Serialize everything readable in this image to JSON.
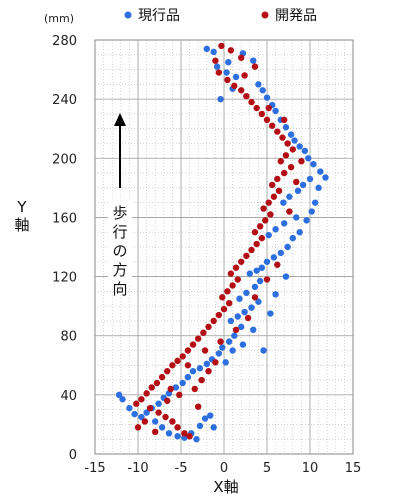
{
  "chart_data": {
    "type": "scatter",
    "xlabel": "X軸",
    "ylabel": "Y軸",
    "yunit": "(mm)",
    "xlim": [
      -15,
      15
    ],
    "ylim": [
      0,
      280
    ],
    "xticks": [
      -15,
      -10,
      -5,
      0,
      5,
      10,
      15
    ],
    "yticks": [
      0,
      40,
      80,
      120,
      160,
      200,
      240,
      280
    ],
    "grid": true,
    "legend_position": "top",
    "annotation": "歩行の方向",
    "colors": {
      "current": "#2e6fe0",
      "developed": "#b40f14"
    },
    "series": [
      {
        "name": "現行品",
        "color": "#2e6fe0",
        "points": [
          [
            -2.0,
            274
          ],
          [
            -1.2,
            272
          ],
          [
            -0.8,
            262
          ],
          [
            0.3,
            258
          ],
          [
            1.4,
            255
          ],
          [
            2.2,
            271
          ],
          [
            3.4,
            266
          ],
          [
            4.0,
            250
          ],
          [
            4.5,
            246
          ],
          [
            5.0,
            241
          ],
          [
            5.6,
            236
          ],
          [
            6.0,
            232
          ],
          [
            6.6,
            226
          ],
          [
            7.2,
            221
          ],
          [
            7.8,
            216
          ],
          [
            8.2,
            212
          ],
          [
            8.8,
            208
          ],
          [
            9.4,
            205
          ],
          [
            9.8,
            200
          ],
          [
            10.4,
            196
          ],
          [
            11.2,
            191
          ],
          [
            11.8,
            187
          ],
          [
            10.0,
            186
          ],
          [
            9.2,
            182
          ],
          [
            8.6,
            178
          ],
          [
            7.6,
            174
          ],
          [
            6.9,
            170
          ],
          [
            10.6,
            170
          ],
          [
            10.2,
            164
          ],
          [
            8.4,
            160
          ],
          [
            7.0,
            156
          ],
          [
            6.0,
            152
          ],
          [
            5.2,
            148
          ],
          [
            8.0,
            146
          ],
          [
            7.4,
            140
          ],
          [
            6.6,
            136
          ],
          [
            5.8,
            133
          ],
          [
            5.0,
            130
          ],
          [
            4.4,
            126
          ],
          [
            3.8,
            124
          ],
          [
            3.0,
            122
          ],
          [
            4.2,
            117
          ],
          [
            3.6,
            113
          ],
          [
            2.6,
            109
          ],
          [
            1.8,
            105
          ],
          [
            4.0,
            103
          ],
          [
            3.2,
            99
          ],
          [
            2.4,
            96
          ],
          [
            1.6,
            93
          ],
          [
            0.8,
            90
          ],
          [
            2.0,
            86
          ],
          [
            3.4,
            84
          ],
          [
            1.2,
            80
          ],
          [
            0.6,
            76
          ],
          [
            -0.2,
            72
          ],
          [
            -0.6,
            68
          ],
          [
            -1.4,
            64
          ],
          [
            -2.0,
            61
          ],
          [
            -2.8,
            58
          ],
          [
            -3.6,
            56
          ],
          [
            -4.2,
            52
          ],
          [
            -4.8,
            48
          ],
          [
            -5.6,
            45
          ],
          [
            -6.4,
            41
          ],
          [
            -7.0,
            38
          ],
          [
            -7.6,
            34
          ],
          [
            -8.4,
            31
          ],
          [
            -9.0,
            28
          ],
          [
            -9.6,
            25
          ],
          [
            -10.4,
            27
          ],
          [
            -11.0,
            31
          ],
          [
            -11.8,
            37
          ],
          [
            -12.2,
            40
          ],
          [
            -8.0,
            22
          ],
          [
            -7.2,
            18
          ],
          [
            -6.4,
            14
          ],
          [
            -5.4,
            12
          ],
          [
            -4.6,
            11
          ],
          [
            -3.8,
            14
          ],
          [
            -2.8,
            19
          ],
          [
            -2.2,
            24
          ],
          [
            -1.6,
            26
          ],
          [
            -3.2,
            10
          ],
          [
            -1.2,
            18
          ],
          [
            0.2,
            62
          ],
          [
            1.0,
            70
          ],
          [
            2.2,
            74
          ],
          [
            4.6,
            70
          ],
          [
            5.4,
            95
          ],
          [
            6.0,
            108
          ],
          [
            7.2,
            120
          ],
          [
            8.8,
            150
          ],
          [
            9.6,
            158
          ],
          [
            11.0,
            180
          ],
          [
            0.5,
            265
          ],
          [
            -0.4,
            240
          ],
          [
            1.0,
            247
          ]
        ]
      },
      {
        "name": "開発品",
        "color": "#b40f14",
        "points": [
          [
            -0.3,
            276
          ],
          [
            0.8,
            273
          ],
          [
            2.0,
            268
          ],
          [
            3.6,
            262
          ],
          [
            -1.0,
            266
          ],
          [
            -0.6,
            258
          ],
          [
            0.4,
            253
          ],
          [
            1.2,
            249
          ],
          [
            2.0,
            246
          ],
          [
            2.6,
            242
          ],
          [
            3.2,
            238
          ],
          [
            3.8,
            234
          ],
          [
            4.4,
            230
          ],
          [
            5.0,
            226
          ],
          [
            5.6,
            222
          ],
          [
            6.2,
            218
          ],
          [
            6.8,
            214
          ],
          [
            7.4,
            210
          ],
          [
            8.0,
            206
          ],
          [
            7.2,
            202
          ],
          [
            6.6,
            198
          ],
          [
            7.8,
            194
          ],
          [
            7.0,
            190
          ],
          [
            6.2,
            186
          ],
          [
            5.6,
            182
          ],
          [
            6.4,
            178
          ],
          [
            5.8,
            174
          ],
          [
            5.2,
            170
          ],
          [
            4.6,
            166
          ],
          [
            5.4,
            162
          ],
          [
            4.8,
            158
          ],
          [
            4.2,
            154
          ],
          [
            3.6,
            150
          ],
          [
            4.4,
            146
          ],
          [
            3.8,
            142
          ],
          [
            3.2,
            138
          ],
          [
            2.6,
            134
          ],
          [
            2.0,
            130
          ],
          [
            1.4,
            126
          ],
          [
            0.8,
            122
          ],
          [
            1.6,
            118
          ],
          [
            1.0,
            114
          ],
          [
            0.4,
            110
          ],
          [
            -0.2,
            106
          ],
          [
            0.6,
            102
          ],
          [
            0.0,
            98
          ],
          [
            -0.6,
            94
          ],
          [
            -1.2,
            90
          ],
          [
            -1.8,
            86
          ],
          [
            -2.4,
            82
          ],
          [
            -3.0,
            78
          ],
          [
            -3.6,
            74
          ],
          [
            -4.2,
            70
          ],
          [
            -4.8,
            66
          ],
          [
            -5.4,
            63
          ],
          [
            -6.0,
            60
          ],
          [
            -6.6,
            56
          ],
          [
            -7.2,
            52
          ],
          [
            -7.8,
            48
          ],
          [
            -8.4,
            45
          ],
          [
            -9.0,
            41
          ],
          [
            -9.6,
            37
          ],
          [
            -10.2,
            34
          ],
          [
            -8.6,
            31
          ],
          [
            -7.6,
            28
          ],
          [
            -6.8,
            25
          ],
          [
            -6.0,
            22
          ],
          [
            -5.4,
            18
          ],
          [
            -4.6,
            14
          ],
          [
            -4.0,
            12
          ],
          [
            -9.2,
            22
          ],
          [
            -10.0,
            18
          ],
          [
            -8.0,
            15
          ],
          [
            -6.6,
            36
          ],
          [
            -5.2,
            40
          ],
          [
            -3.4,
            44
          ],
          [
            -2.6,
            50
          ],
          [
            -1.8,
            56
          ],
          [
            -1.0,
            62
          ],
          [
            -2.2,
            70
          ],
          [
            -0.4,
            76
          ],
          [
            1.4,
            84
          ],
          [
            2.8,
            92
          ],
          [
            3.6,
            106
          ],
          [
            5.0,
            118
          ],
          [
            6.2,
            128
          ],
          [
            7.6,
            164
          ],
          [
            8.4,
            184
          ],
          [
            9.0,
            198
          ],
          [
            7.0,
            226
          ],
          [
            5.2,
            234
          ],
          [
            2.4,
            256
          ],
          [
            -4.2,
            60
          ],
          [
            -6.2,
            44
          ],
          [
            -3.0,
            32
          ]
        ]
      }
    ]
  }
}
